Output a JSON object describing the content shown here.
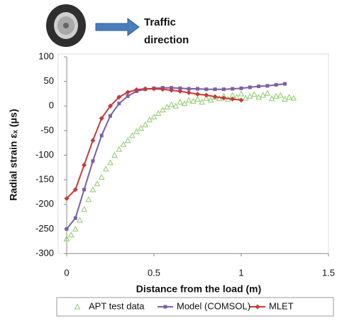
{
  "chart_data": {
    "type": "line",
    "annotation": [
      "Traffic",
      "direction"
    ],
    "xlabel": "Distance from the load (m)",
    "ylabel": "Radial strain εₓ (μs)",
    "xlim": [
      0,
      1.5
    ],
    "xticks": [
      0,
      0.5,
      1,
      1.5
    ],
    "ylim": [
      -300,
      100
    ],
    "yticks": [
      100,
      50,
      0,
      -50,
      -100,
      -150,
      -200,
      -250,
      -300
    ],
    "grid": false,
    "legend": "bottom",
    "series": [
      {
        "name": "APT test data",
        "color": "#8cc96a",
        "marker": "triangle",
        "line": false,
        "x": [
          0,
          0.025,
          0.05,
          0.075,
          0.1,
          0.125,
          0.15,
          0.175,
          0.2,
          0.225,
          0.25,
          0.275,
          0.3,
          0.325,
          0.35,
          0.375,
          0.4,
          0.425,
          0.45,
          0.475,
          0.5,
          0.525,
          0.55,
          0.575,
          0.6,
          0.625,
          0.65,
          0.675,
          0.7,
          0.725,
          0.75,
          0.775,
          0.8,
          0.825,
          0.85,
          0.875,
          0.9,
          0.925,
          0.95,
          0.975,
          1,
          1.025,
          1.05,
          1.075,
          1.1,
          1.125,
          1.15,
          1.175,
          1.2,
          1.225,
          1.25,
          1.275,
          1.3
        ],
        "values": [
          -270,
          -262,
          -250,
          -232,
          -210,
          -190,
          -170,
          -158,
          -145,
          -128,
          -115,
          -100,
          -88,
          -78,
          -70,
          -60,
          -52,
          -45,
          -38,
          -28,
          -22,
          -15,
          -8,
          -2,
          3,
          0,
          8,
          5,
          12,
          10,
          14,
          8,
          16,
          12,
          18,
          15,
          20,
          14,
          22,
          18,
          25,
          16,
          20,
          24,
          18,
          22,
          26,
          15,
          20,
          22,
          14,
          18,
          16
        ]
      },
      {
        "name": "Model (COMSOL)",
        "color": "#7b5ea7",
        "marker": "square",
        "line": true,
        "x": [
          0,
          0.05,
          0.1,
          0.15,
          0.2,
          0.25,
          0.3,
          0.35,
          0.4,
          0.45,
          0.5,
          0.55,
          0.6,
          0.65,
          0.7,
          0.75,
          0.8,
          0.85,
          0.9,
          0.95,
          1,
          1.05,
          1.1,
          1.15,
          1.2,
          1.25
        ],
        "values": [
          -250,
          -228,
          -170,
          -112,
          -60,
          -20,
          5,
          20,
          30,
          34,
          36,
          37,
          37,
          36,
          35,
          35,
          34,
          34,
          34,
          35,
          36,
          38,
          40,
          41,
          43,
          45
        ]
      },
      {
        "name": "MLET",
        "color": "#c43a3a",
        "marker": "diamond",
        "line": true,
        "x": [
          0,
          0.05,
          0.1,
          0.15,
          0.2,
          0.25,
          0.3,
          0.35,
          0.4,
          0.45,
          0.5,
          0.55,
          0.6,
          0.65,
          0.7,
          0.75,
          0.8,
          0.85,
          0.9,
          0.95,
          1
        ],
        "values": [
          -188,
          -170,
          -120,
          -70,
          -25,
          0,
          18,
          28,
          33,
          35,
          35,
          34,
          32,
          30,
          27,
          24,
          22,
          19,
          16,
          14,
          12
        ]
      }
    ]
  }
}
